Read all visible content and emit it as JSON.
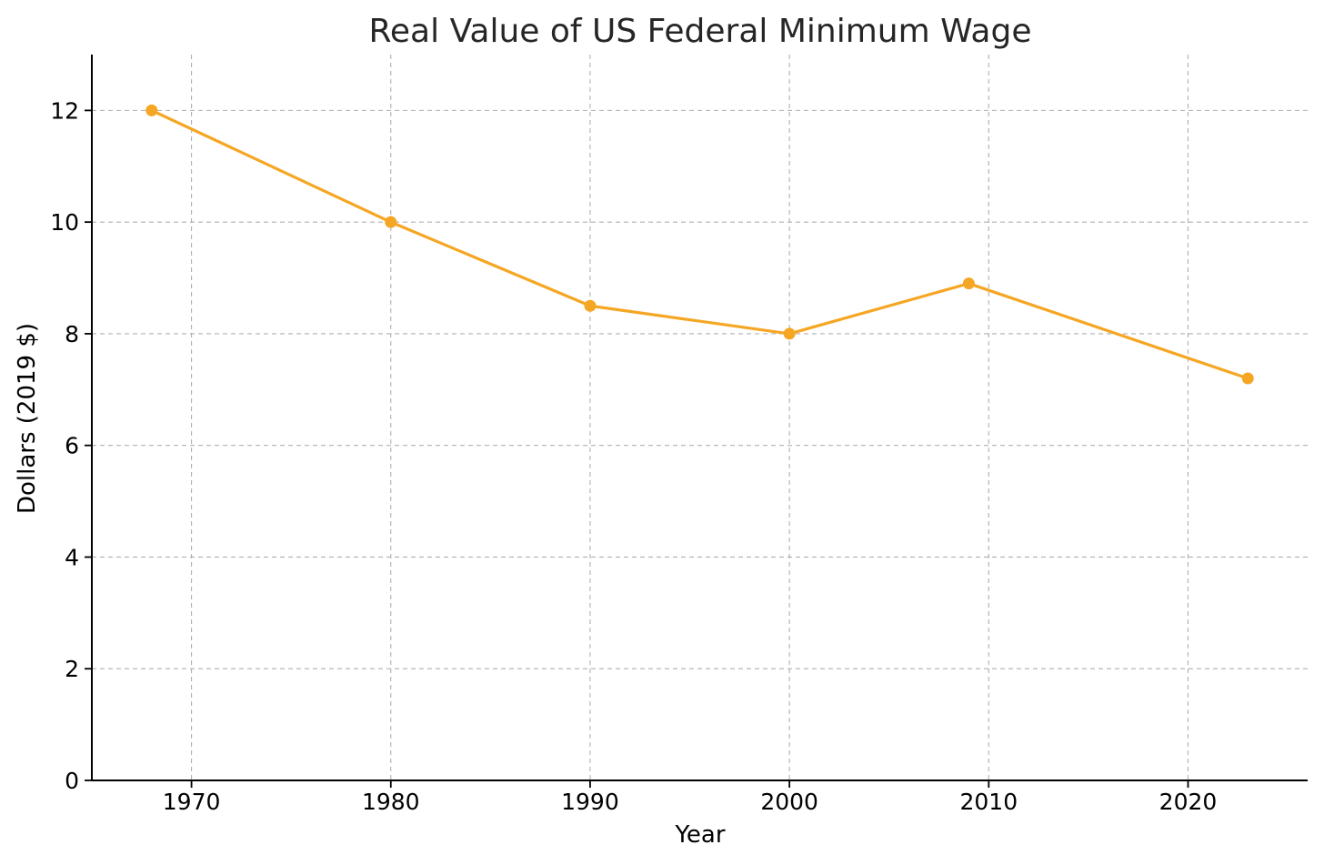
{
  "chart_data": {
    "type": "line",
    "title": "Real Value of US Federal Minimum Wage",
    "xlabel": "Year",
    "ylabel": "Dollars (2019 $)",
    "x": [
      1968,
      1980,
      1990,
      2000,
      2009,
      2023
    ],
    "series": [
      {
        "values": [
          12.0,
          10.0,
          8.5,
          8.0,
          8.9,
          7.2
        ],
        "color": "#f5a623",
        "marker": "circle"
      }
    ],
    "xlim": [
      1965,
      2026
    ],
    "ylim": [
      0,
      13
    ],
    "xticks": [
      1970,
      1980,
      1990,
      2000,
      2010,
      2020
    ],
    "xtick_labels": [
      "1970",
      "1980",
      "1990",
      "2000",
      "2010",
      "2020"
    ],
    "yticks": [
      0,
      2,
      4,
      6,
      8,
      10,
      12
    ],
    "ytick_labels": [
      "0",
      "2",
      "4",
      "6",
      "8",
      "10",
      "12"
    ],
    "grid": true,
    "legend": "none"
  }
}
